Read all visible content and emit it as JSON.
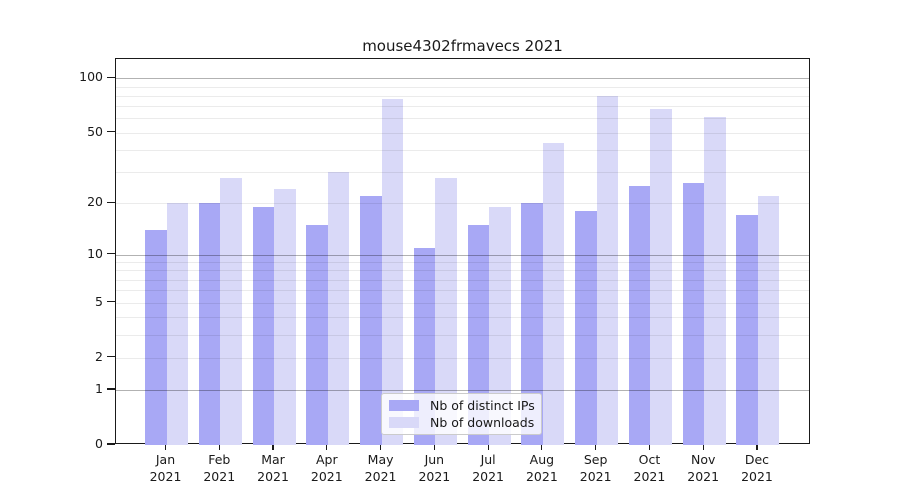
{
  "title": "mouse4302frmavecs 2021",
  "colors": {
    "ips_bar": "#a8a8f5",
    "downloads_bar": "#d9d9f8",
    "spine": "#1a1a1a",
    "text": "#1a1a1a",
    "grid_major": "#b3b3b3",
    "grid_minor": "#ebebeb",
    "legend_border": "#cbcbcb",
    "background": "#ffffff"
  },
  "chart_data": {
    "type": "bar",
    "title": "mouse4302frmavecs 2021",
    "categories": [
      "Jan 2021",
      "Feb 2021",
      "Mar 2021",
      "Apr 2021",
      "May 2021",
      "Jun 2021",
      "Jul 2021",
      "Aug 2021",
      "Sep 2021",
      "Oct 2021",
      "Nov 2021",
      "Dec 2021"
    ],
    "series": [
      {
        "name": "Nb of distinct IPs",
        "color": "#a8a8f5",
        "values": [
          14,
          20,
          19,
          15,
          22,
          11,
          15,
          20,
          18,
          25,
          26,
          17
        ]
      },
      {
        "name": "Nb of downloads",
        "color": "#d9d9f8",
        "values": [
          20,
          28,
          24,
          30,
          77,
          28,
          19,
          44,
          80,
          68,
          61,
          22
        ]
      }
    ],
    "xlabel": "",
    "ylabel": "",
    "yscale": "log1p",
    "ylim": [
      0,
      128
    ],
    "yticks": [
      0,
      1,
      2,
      5,
      10,
      20,
      50,
      100
    ],
    "grid_major": [
      1,
      10,
      100
    ],
    "grid_minor": [
      2,
      3,
      4,
      5,
      6,
      7,
      8,
      9,
      20,
      30,
      40,
      50,
      60,
      70,
      80,
      90
    ],
    "grid": true,
    "legend_position": "lower center"
  }
}
